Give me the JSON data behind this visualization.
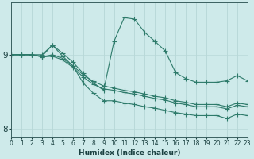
{
  "xlabel": "Humidex (Indice chaleur)",
  "ylabel": "",
  "background_color": "#ceeaea",
  "line_color": "#2d7a6a",
  "grid_color": "#b8d8d8",
  "x_ticks": [
    0,
    1,
    2,
    3,
    4,
    5,
    6,
    7,
    8,
    9,
    10,
    11,
    12,
    13,
    14,
    15,
    16,
    17,
    18,
    19,
    20,
    21,
    22,
    23
  ],
  "y_ticks": [
    8,
    9
  ],
  "xlim": [
    0,
    23
  ],
  "ylim": [
    7.9,
    9.7
  ],
  "lines": [
    {
      "x": [
        0,
        1,
        2,
        3,
        4,
        5,
        6,
        7,
        8,
        9,
        10,
        11,
        12,
        13,
        14,
        15,
        16,
        17,
        18,
        19,
        20,
        21,
        22,
        23
      ],
      "y": [
        9.0,
        9.0,
        9.0,
        9.0,
        9.13,
        9.02,
        8.9,
        8.75,
        8.62,
        8.52,
        9.18,
        9.5,
        9.48,
        9.3,
        9.18,
        9.05,
        8.76,
        8.68,
        8.63,
        8.63,
        8.63,
        8.65,
        8.72,
        8.65
      ]
    },
    {
      "x": [
        0,
        1,
        2,
        3,
        4,
        5,
        6,
        7,
        8,
        9,
        10,
        11,
        12,
        13,
        14,
        15,
        16,
        17,
        18,
        19,
        20,
        21,
        22,
        23
      ],
      "y": [
        9.0,
        9.0,
        9.0,
        8.98,
        9.13,
        8.98,
        8.85,
        8.62,
        8.48,
        8.38,
        8.38,
        8.35,
        8.33,
        8.3,
        8.28,
        8.25,
        8.22,
        8.2,
        8.18,
        8.18,
        8.18,
        8.14,
        8.2,
        8.18
      ]
    },
    {
      "x": [
        0,
        1,
        2,
        3,
        4,
        5,
        6,
        7,
        8,
        9,
        10,
        11,
        12,
        13,
        14,
        15,
        16,
        17,
        18,
        19,
        20,
        21,
        22,
        23
      ],
      "y": [
        9.0,
        9.0,
        9.0,
        8.97,
        9.0,
        8.95,
        8.85,
        8.73,
        8.64,
        8.58,
        8.55,
        8.52,
        8.5,
        8.47,
        8.44,
        8.42,
        8.38,
        8.36,
        8.33,
        8.33,
        8.33,
        8.3,
        8.35,
        8.33
      ]
    },
    {
      "x": [
        0,
        1,
        2,
        3,
        4,
        5,
        6,
        7,
        8,
        9,
        10,
        11,
        12,
        13,
        14,
        15,
        16,
        17,
        18,
        19,
        20,
        21,
        22,
        23
      ],
      "y": [
        9.0,
        9.0,
        9.0,
        8.97,
        8.98,
        8.93,
        8.83,
        8.7,
        8.6,
        8.54,
        8.52,
        8.49,
        8.47,
        8.44,
        8.41,
        8.39,
        8.35,
        8.33,
        8.3,
        8.3,
        8.3,
        8.27,
        8.32,
        8.3
      ]
    }
  ],
  "marker": "+",
  "markersize": 4,
  "linewidth": 0.8,
  "label_fontsize": 6.5,
  "tick_fontsize": 5.5
}
